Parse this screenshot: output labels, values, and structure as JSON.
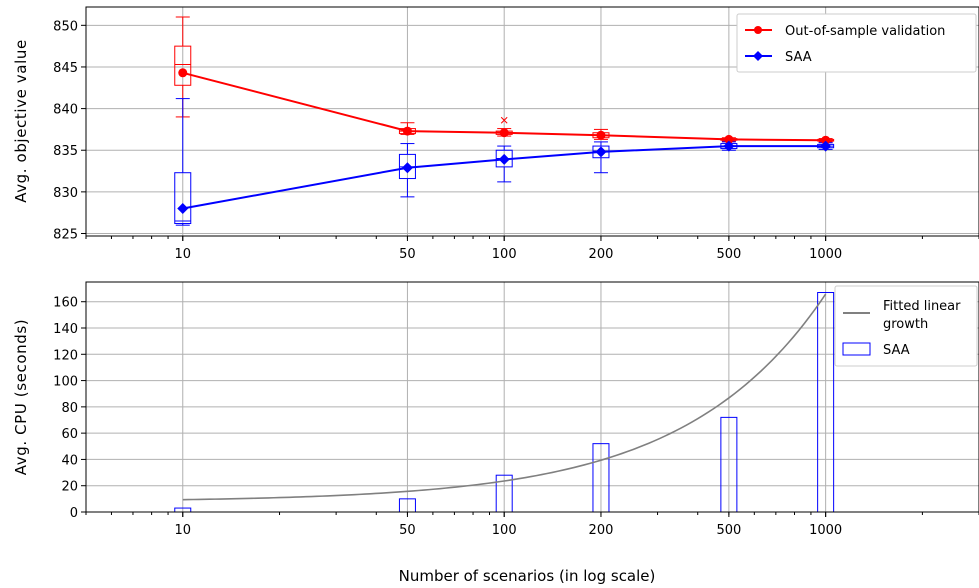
{
  "chart_data": [
    {
      "type": "line",
      "subplot": "top",
      "xscale": "log",
      "x": [
        10,
        50,
        100,
        200,
        500,
        1000
      ],
      "xtick_labels": [
        "10",
        "50",
        "100",
        "200",
        "500",
        "1000"
      ],
      "xlim": [
        5,
        3000
      ],
      "ylim": [
        824.7,
        852.2
      ],
      "yticks": [
        825,
        830,
        835,
        840,
        845,
        850
      ],
      "ylabel": "Avg. objective value",
      "grid": true,
      "legend_position": "top-right",
      "series": [
        {
          "name": "Out-of-sample validation",
          "color": "#ff0000",
          "marker": "circle",
          "values": [
            844.3,
            837.3,
            837.1,
            836.8,
            836.3,
            836.2
          ],
          "boxes": [
            {
              "x": 10,
              "whisker_low": 839.0,
              "q1": 842.8,
              "median": 845.3,
              "q3": 847.5,
              "whisker_high": 851.0,
              "outliers": []
            },
            {
              "x": 50,
              "whisker_low": 836.9,
              "q1": 837.0,
              "median": 837.3,
              "q3": 837.6,
              "whisker_high": 838.3,
              "outliers": []
            },
            {
              "x": 100,
              "whisker_low": 836.7,
              "q1": 836.9,
              "median": 837.1,
              "q3": 837.3,
              "whisker_high": 837.6,
              "outliers": [
                838.6
              ]
            },
            {
              "x": 200,
              "whisker_low": 836.3,
              "q1": 836.5,
              "median": 836.8,
              "q3": 837.1,
              "whisker_high": 837.5,
              "outliers": []
            },
            {
              "x": 500,
              "whisker_low": 836.1,
              "q1": 836.2,
              "median": 836.3,
              "q3": 836.4,
              "whisker_high": 836.5,
              "outliers": []
            },
            {
              "x": 1000,
              "whisker_low": 836.0,
              "q1": 836.1,
              "median": 836.2,
              "q3": 836.3,
              "whisker_high": 836.4,
              "outliers": []
            }
          ]
        },
        {
          "name": "SAA",
          "color": "#0000ff",
          "marker": "diamond",
          "values": [
            828.0,
            832.9,
            833.9,
            834.8,
            835.5,
            835.5
          ],
          "boxes": [
            {
              "x": 10,
              "whisker_low": 826.0,
              "q1": 826.2,
              "median": 826.5,
              "q3": 832.3,
              "whisker_high": 841.2,
              "outliers": []
            },
            {
              "x": 50,
              "whisker_low": 829.4,
              "q1": 831.6,
              "median": 833.0,
              "q3": 834.5,
              "whisker_high": 835.8,
              "outliers": []
            },
            {
              "x": 100,
              "whisker_low": 831.2,
              "q1": 833.0,
              "median": 834.0,
              "q3": 835.0,
              "whisker_high": 835.5,
              "outliers": []
            },
            {
              "x": 200,
              "whisker_low": 832.3,
              "q1": 834.1,
              "median": 834.9,
              "q3": 835.5,
              "whisker_high": 836.0,
              "outliers": []
            },
            {
              "x": 500,
              "whisker_low": 835.0,
              "q1": 835.2,
              "median": 835.5,
              "q3": 835.8,
              "whisker_high": 836.0,
              "outliers": []
            },
            {
              "x": 1000,
              "whisker_low": 835.1,
              "q1": 835.3,
              "median": 835.5,
              "q3": 835.7,
              "whisker_high": 835.9,
              "outliers": []
            }
          ]
        }
      ]
    },
    {
      "type": "bar",
      "subplot": "bottom",
      "xscale": "log",
      "categories": [
        "10",
        "50",
        "100",
        "200",
        "500",
        "1000"
      ],
      "x": [
        10,
        50,
        100,
        200,
        500,
        1000
      ],
      "xlim": [
        5,
        3000
      ],
      "ylim": [
        0,
        175
      ],
      "yticks": [
        0,
        20,
        40,
        60,
        80,
        100,
        120,
        140,
        160
      ],
      "ylabel": "Avg. CPU (seconds)",
      "xlabel": "Number of scenarios (in log scale)",
      "grid": true,
      "legend_position": "top-right",
      "series": [
        {
          "name": "SAA",
          "type": "bar",
          "color": "#0000ff",
          "fill": "none",
          "values": [
            3,
            10,
            28,
            52,
            72,
            167
          ]
        },
        {
          "name": "Fitted linear\ngrowth",
          "type": "line",
          "color": "#808080",
          "slope": 0.158,
          "intercept": 7.8
        }
      ]
    }
  ]
}
